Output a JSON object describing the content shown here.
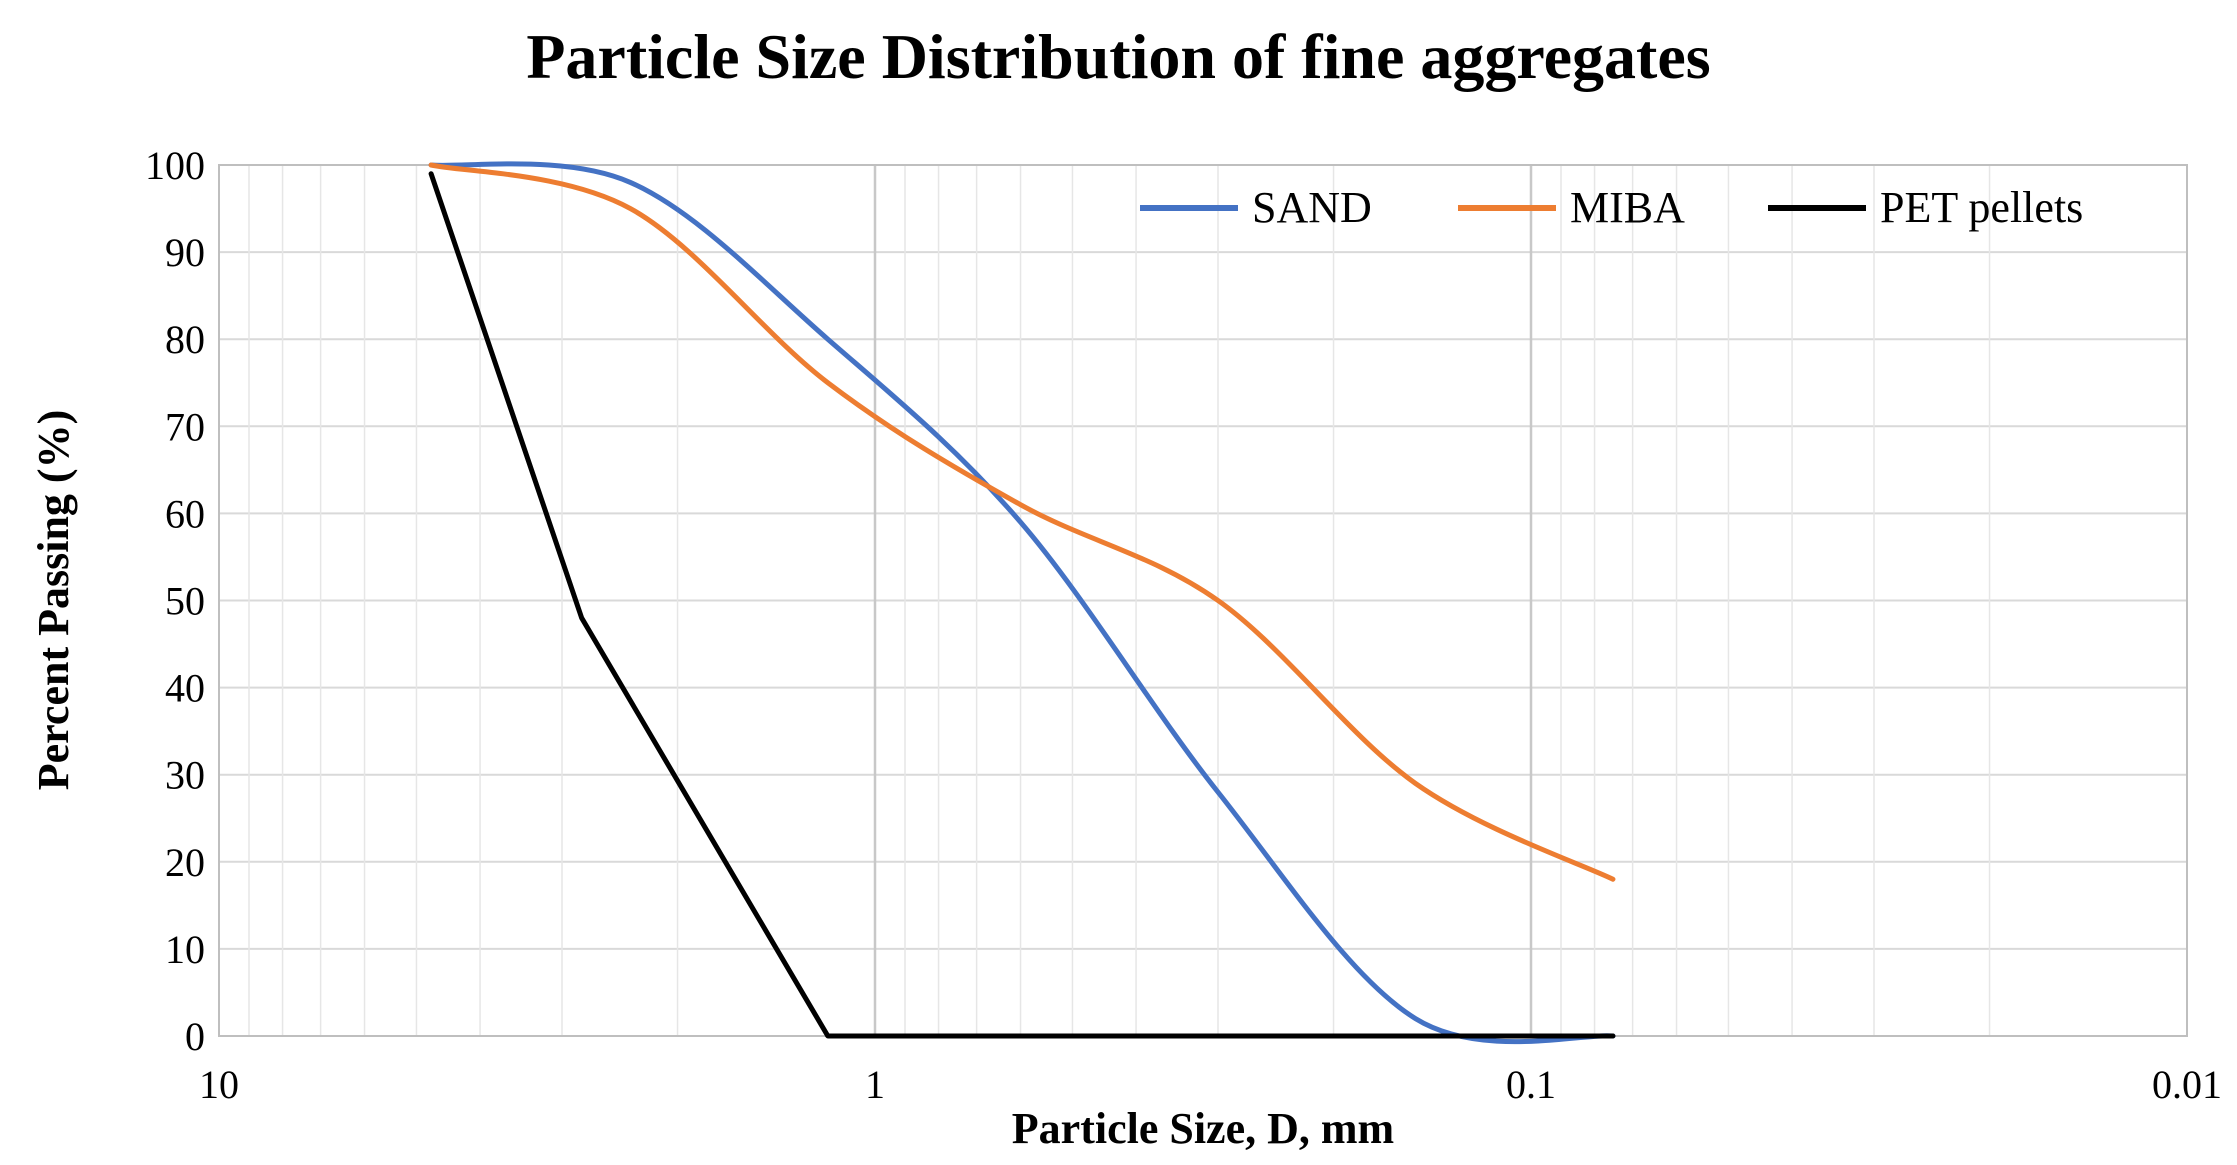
{
  "chart_data": {
    "type": "line",
    "title": "Particle Size Distribution of fine aggregates",
    "xlabel": "Particle Size, D, mm",
    "ylabel": "Percent  Passing (%)",
    "xscale": "log",
    "xreversed": true,
    "xlim": [
      10,
      0.01
    ],
    "ylim": [
      0,
      100
    ],
    "xticks": [
      10,
      1,
      0.1,
      0.01
    ],
    "xtick_labels": [
      "10",
      "1",
      "0.1",
      "0.01"
    ],
    "yticks": [
      0,
      10,
      20,
      30,
      40,
      50,
      60,
      70,
      80,
      90,
      100
    ],
    "ytick_labels": [
      "0",
      "10",
      "20",
      "30",
      "40",
      "50",
      "60",
      "70",
      "80",
      "90",
      "100"
    ],
    "grid": true,
    "legend_position": "top-right",
    "series": [
      {
        "name": "SAND",
        "color": "#4472C4",
        "x": [
          4.75,
          2.36,
          1.18,
          0.6,
          0.3,
          0.15,
          0.075
        ],
        "y": [
          100,
          98,
          80,
          59,
          28,
          2,
          0
        ]
      },
      {
        "name": "MIBA",
        "color": "#ED7D31",
        "x": [
          4.75,
          2.36,
          1.18,
          0.6,
          0.3,
          0.15,
          0.075
        ],
        "y": [
          100,
          95,
          75,
          61,
          50,
          29,
          18
        ]
      },
      {
        "name": "PET pellets",
        "color": "#000000",
        "x": [
          4.75,
          2.8,
          1.18,
          0.6,
          0.3,
          0.15,
          0.075
        ],
        "y": [
          99,
          48,
          0,
          0,
          0,
          0,
          0
        ]
      }
    ]
  }
}
